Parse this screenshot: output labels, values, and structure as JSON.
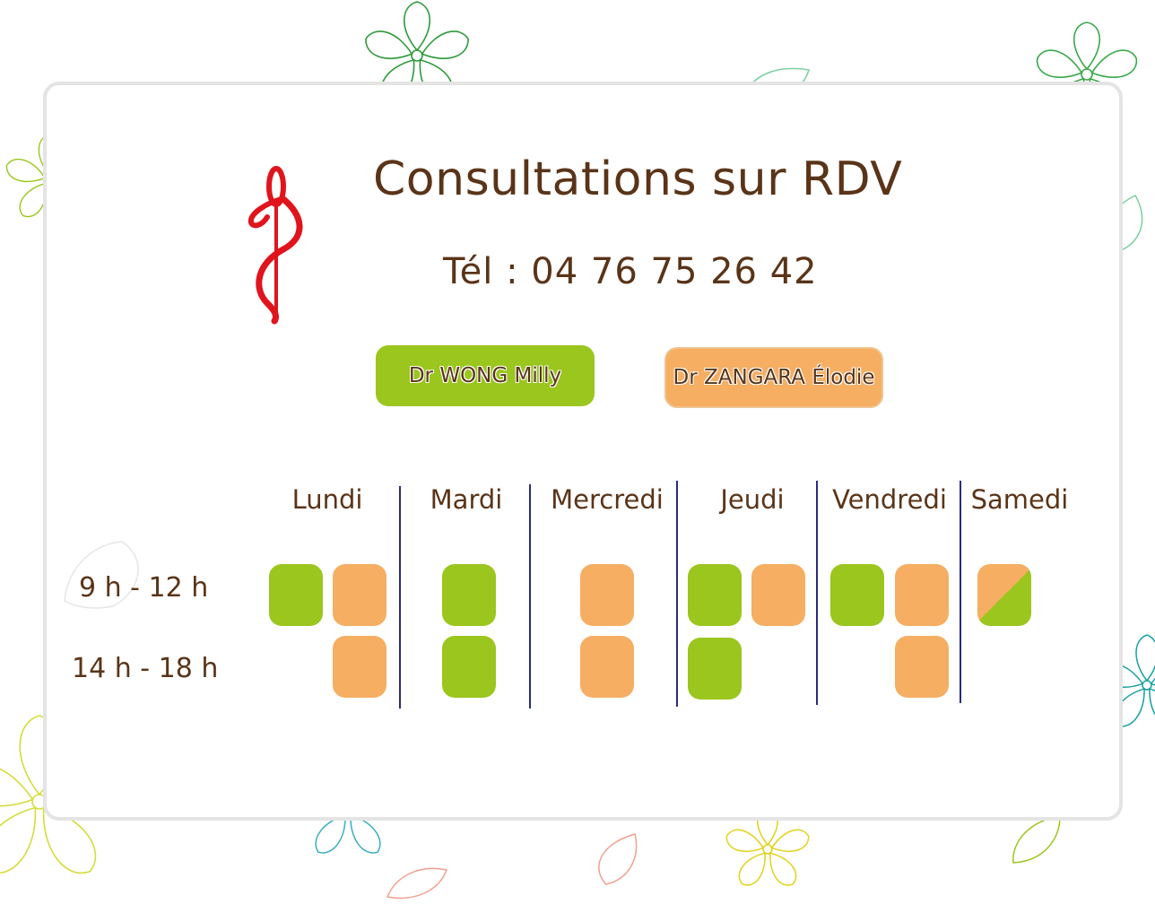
{
  "header": {
    "title": "Consultations sur RDV",
    "phone": "Tél : 04 76 75 26 42"
  },
  "doctors": [
    {
      "label": "Dr WONG Milly",
      "color": "#9ac61e"
    },
    {
      "label": "Dr ZANGARA Élodie",
      "color": "#f5ae62"
    }
  ],
  "schedule": {
    "days": [
      "Lundi",
      "Mardi",
      "Mercredi",
      "Jeudi",
      "Vendredi",
      "Samedi"
    ],
    "times": [
      "9 h - 12 h",
      "14 h - 18 h"
    ],
    "slots": {
      "Lundi": {
        "morning": [
          "Dr WONG Milly",
          "Dr ZANGARA Élodie"
        ],
        "afternoon": [
          "Dr ZANGARA Élodie"
        ]
      },
      "Mardi": {
        "morning": [
          "Dr WONG Milly"
        ],
        "afternoon": [
          "Dr WONG Milly"
        ]
      },
      "Mercredi": {
        "morning": [
          "Dr ZANGARA Élodie"
        ],
        "afternoon": [
          "Dr ZANGARA Élodie"
        ]
      },
      "Jeudi": {
        "morning": [
          "Dr WONG Milly",
          "Dr ZANGARA Élodie"
        ],
        "afternoon": [
          "Dr WONG Milly"
        ]
      },
      "Vendredi": {
        "morning": [
          "Dr WONG Milly",
          "Dr ZANGARA Élodie"
        ],
        "afternoon": [
          "Dr ZANGARA Élodie"
        ]
      },
      "Samedi": {
        "morning": [
          "Dr ZANGARA Élodie / Dr WONG Milly (alternance)"
        ],
        "afternoon": []
      }
    }
  },
  "icons": [
    "caduceus-icon",
    "flower-icon",
    "petal-icon"
  ],
  "colors": {
    "text": "#5a3418",
    "wong": "#9ac61e",
    "zangara": "#f5ae62",
    "caduceus": "#e0141c",
    "separator": "#2b2b7a"
  }
}
